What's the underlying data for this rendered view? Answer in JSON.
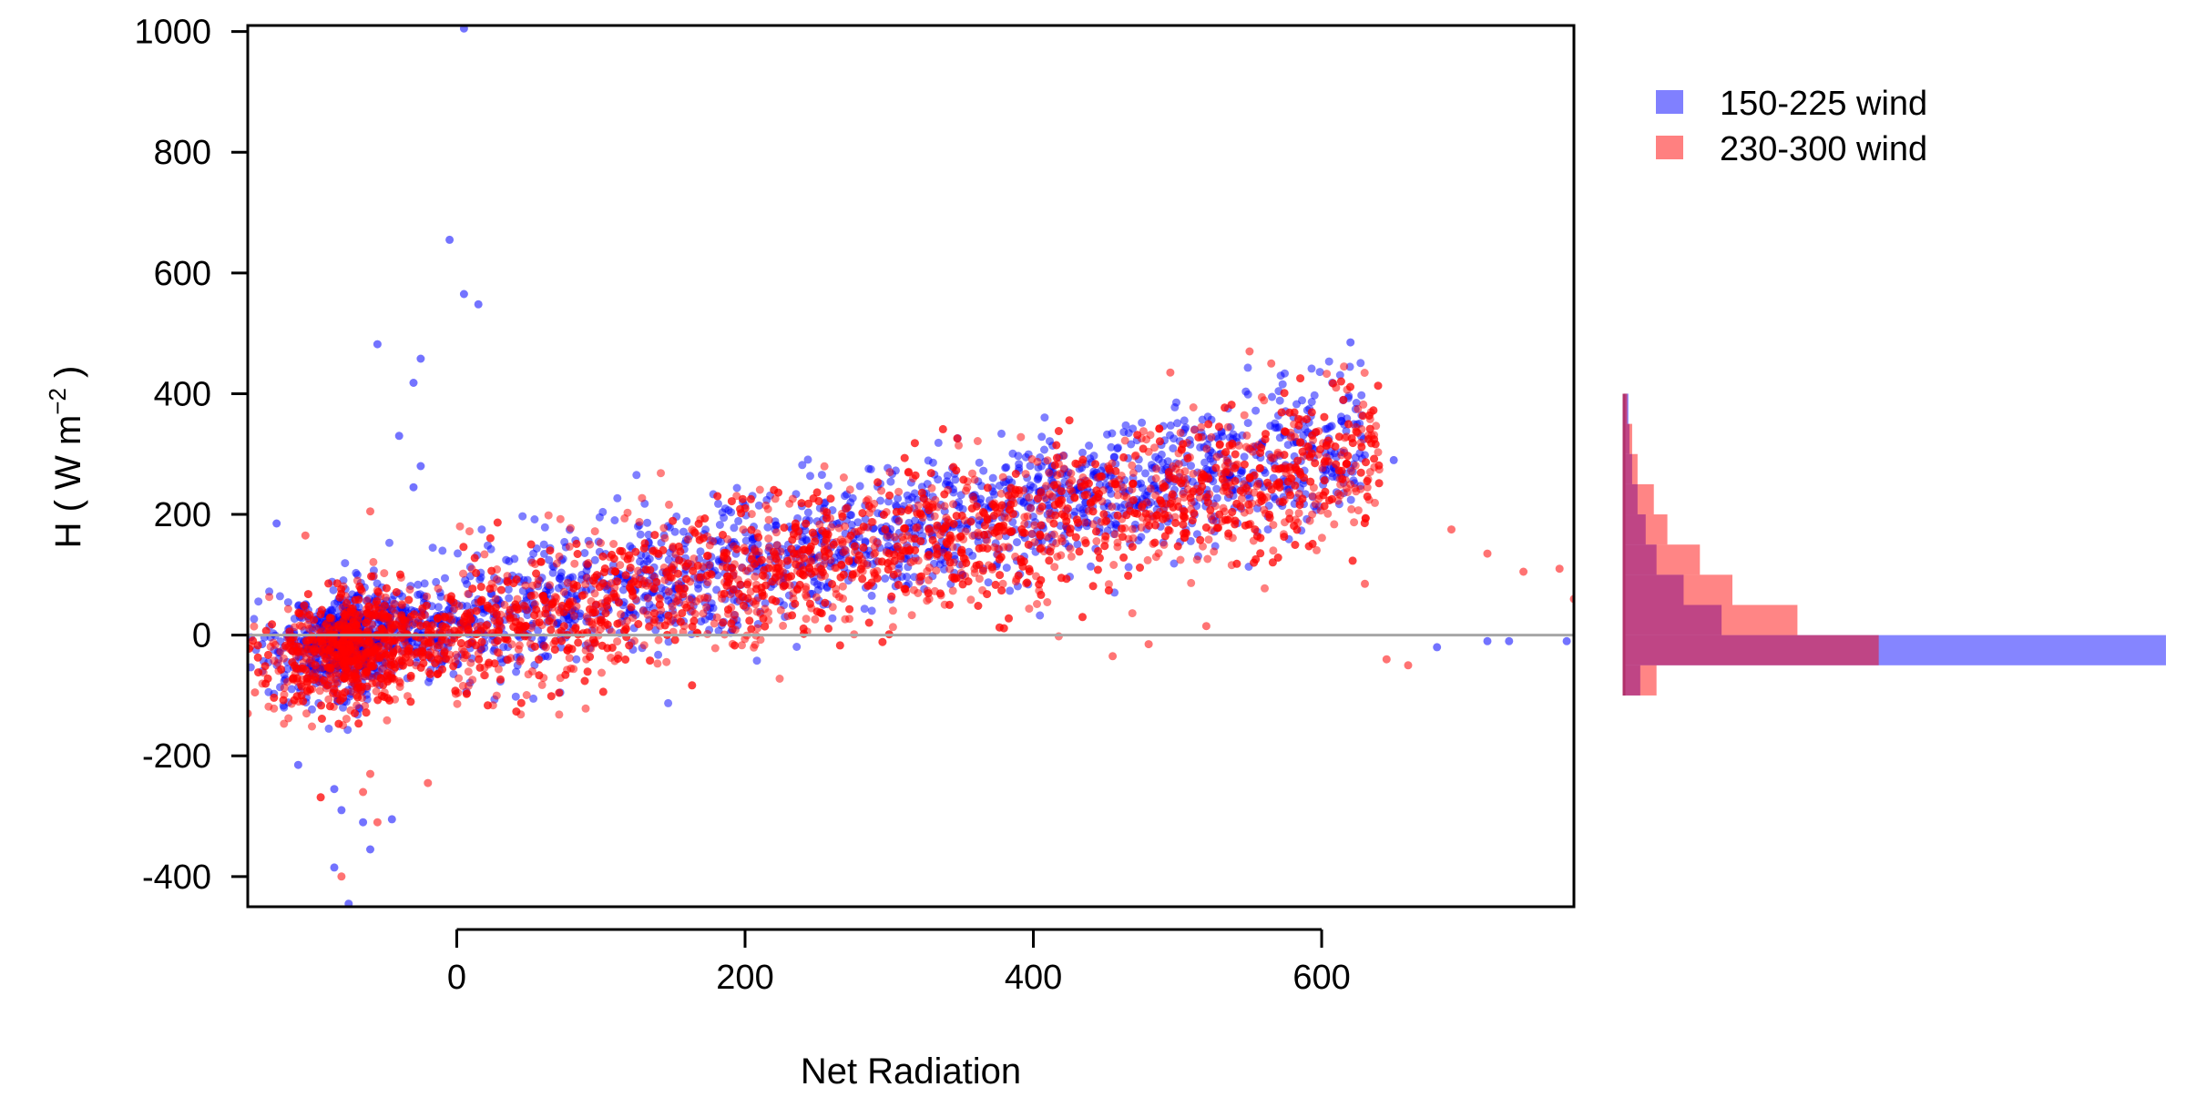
{
  "chart_data": {
    "type": "scatter",
    "xlabel": "Net Radiation",
    "ylabel": "H ( W m",
    "ylabel_sup": "−2",
    "ylabel_close": " )",
    "xlim": [
      -145,
      775
    ],
    "ylim": [
      -450,
      1010
    ],
    "x_ticks": [
      0,
      200,
      400,
      600
    ],
    "x_tick_labels": [
      "0",
      "200",
      "400",
      "600"
    ],
    "y_ticks": [
      -400,
      -200,
      0,
      200,
      400,
      600,
      800,
      1000
    ],
    "y_tick_labels": [
      "-400",
      "-200",
      "0",
      "200",
      "400",
      "600",
      "800",
      "1000"
    ],
    "reference_line_y": 0,
    "legend": "top-right",
    "series": [
      {
        "name": "150-225 wind",
        "color": "#0000ff",
        "legend_color": "#8080ff",
        "trend": {
          "slope": 0.47,
          "intercept": 25,
          "x_range": [
            -100,
            630
          ],
          "spread": 55
        },
        "notable_points": [
          [
            -5,
            655
          ],
          [
            5,
            565
          ],
          [
            15,
            548
          ],
          [
            -55,
            482
          ],
          [
            -25,
            458
          ],
          [
            -30,
            418
          ],
          [
            -40,
            330
          ],
          [
            -25,
            280
          ],
          [
            -30,
            245
          ],
          [
            -110,
            -215
          ],
          [
            -85,
            -255
          ],
          [
            -80,
            -290
          ],
          [
            -65,
            -310
          ],
          [
            -45,
            -305
          ],
          [
            -60,
            -355
          ],
          [
            -85,
            -385
          ],
          [
            -75,
            -445
          ],
          [
            5,
            1005
          ],
          [
            -135,
            -15
          ],
          [
            -125,
            185
          ],
          [
            680,
            -20
          ],
          [
            715,
            -10
          ],
          [
            730,
            -10
          ],
          [
            620,
            485
          ],
          [
            650,
            290
          ],
          [
            770,
            -10
          ]
        ],
        "histogram": {
          "bin_edges": [
            -100,
            -50,
            0,
            50,
            100,
            150,
            200,
            250,
            300,
            350,
            400
          ],
          "counts": [
            30,
            1000,
            180,
            110,
            60,
            40,
            25,
            15,
            10,
            8
          ]
        }
      },
      {
        "name": "230-300 wind",
        "color": "#ff0000",
        "legend_color": "#ff8080",
        "trend": {
          "slope": 0.46,
          "intercept": 5,
          "x_range": [
            -80,
            640
          ],
          "spread": 60
        },
        "notable_points": [
          [
            550,
            470
          ],
          [
            565,
            450
          ],
          [
            495,
            435
          ],
          [
            -20,
            -245
          ],
          [
            -60,
            -230
          ],
          [
            -65,
            -260
          ],
          [
            -55,
            -310
          ],
          [
            -80,
            -400
          ],
          [
            -140,
            -95
          ],
          [
            -145,
            -130
          ],
          [
            -105,
            165
          ],
          [
            -60,
            205
          ],
          [
            715,
            135
          ],
          [
            740,
            105
          ],
          [
            765,
            110
          ],
          [
            775,
            60
          ],
          [
            690,
            175
          ],
          [
            630,
            85
          ],
          [
            645,
            -40
          ],
          [
            660,
            -50
          ],
          [
            610,
            410
          ],
          [
            625,
            335
          ],
          [
            520,
            15
          ],
          [
            480,
            -15
          ],
          [
            455,
            -35
          ]
        ],
        "histogram": {
          "bin_edges": [
            -100,
            -50,
            0,
            50,
            100,
            150,
            200,
            250,
            300,
            350,
            400
          ],
          "counts": [
            60,
            470,
            320,
            200,
            140,
            80,
            55,
            25,
            15,
            6
          ]
        }
      }
    ]
  }
}
